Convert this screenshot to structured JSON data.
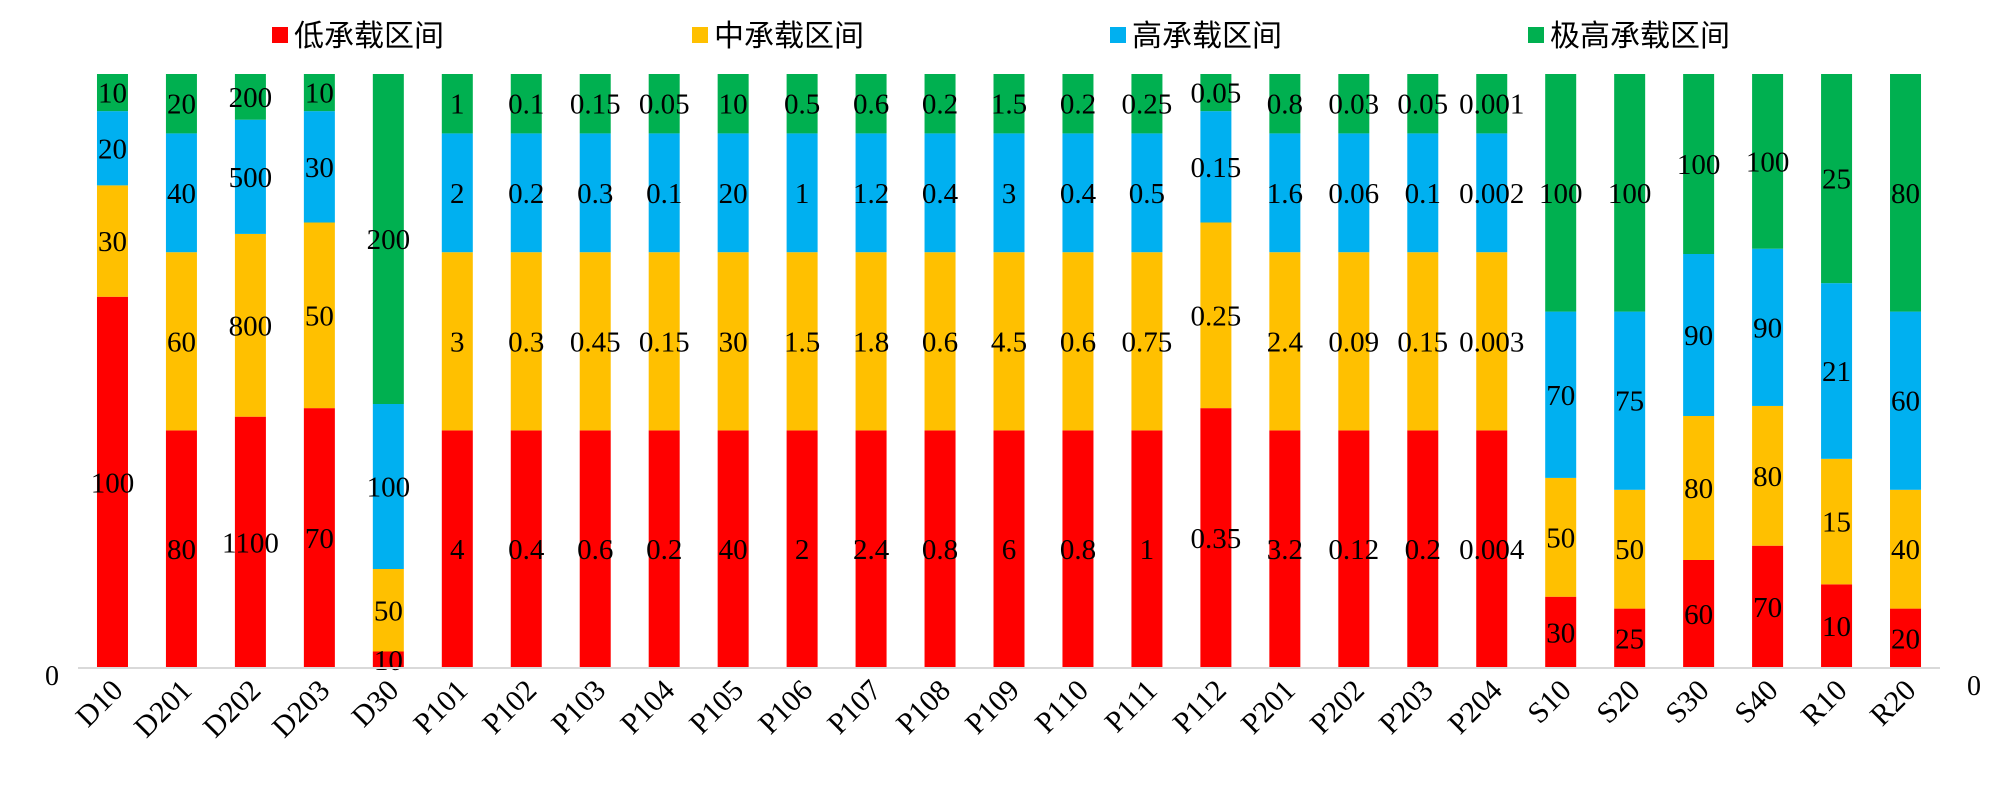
{
  "chart_data": {
    "type": "bar",
    "stacked": true,
    "normalized": true,
    "title": "",
    "xlabel": "",
    "ylabel": "",
    "left_axis_label": "0",
    "right_axis_label": "0",
    "legend_position": "top",
    "categories": [
      "D10",
      "D201",
      "D202",
      "D203",
      "D30",
      "P101",
      "P102",
      "P103",
      "P104",
      "P105",
      "P106",
      "P107",
      "P108",
      "P109",
      "P110",
      "P111",
      "P112",
      "P201",
      "P202",
      "P203",
      "P204",
      "S10",
      "S20",
      "S30",
      "S40",
      "R10",
      "R20"
    ],
    "series": [
      {
        "name": "低承载区间",
        "color": "#FF0000",
        "values": [
          100,
          80,
          1100,
          70,
          10,
          4,
          0.4,
          0.6,
          0.2,
          40,
          2,
          2.4,
          0.8,
          6,
          0.8,
          1,
          0.35,
          3.2,
          0.12,
          0.2,
          0.004,
          30,
          25,
          60,
          70,
          10,
          20
        ],
        "labels": [
          "100",
          "80",
          "1100",
          "70",
          "10",
          "4",
          "0.4",
          "0.6",
          "0.2",
          "40",
          "2",
          "2.4",
          "0.8",
          "6",
          "0.8",
          "1",
          "0.35",
          "3.2",
          "0.12",
          "0.2",
          "0.004",
          "30",
          "25",
          "60",
          "70",
          "10",
          "20"
        ]
      },
      {
        "name": "中承载区间",
        "color": "#FFC000",
        "values": [
          30,
          60,
          800,
          50,
          50,
          3,
          0.3,
          0.45,
          0.15,
          30,
          1.5,
          1.8,
          0.6,
          4.5,
          0.6,
          0.75,
          0.25,
          2.4,
          0.09,
          0.15,
          0.003,
          50,
          50,
          80,
          80,
          15,
          40
        ],
        "labels": [
          "30",
          "60",
          "800",
          "50",
          "50",
          "3",
          "0.3",
          "0.45",
          "0.15",
          "30",
          "1.5",
          "1.8",
          "0.6",
          "4.5",
          "0.6",
          "0.75",
          "0.25",
          "2.4",
          "0.09",
          "0.15",
          "0.003",
          "50",
          "50",
          "80",
          "80",
          "15",
          "40"
        ]
      },
      {
        "name": "高承载区间",
        "color": "#00B0F0",
        "values": [
          20,
          40,
          500,
          30,
          100,
          2,
          0.2,
          0.3,
          0.1,
          20,
          1,
          1.2,
          0.4,
          3,
          0.4,
          0.5,
          0.15,
          1.6,
          0.06,
          0.1,
          0.002,
          70,
          75,
          90,
          90,
          21,
          60
        ],
        "labels": [
          "20",
          "40",
          "500",
          "30",
          "100",
          "2",
          "0.2",
          "0.3",
          "0.1",
          "20",
          "1",
          "1.2",
          "0.4",
          "3",
          "0.4",
          "0.5",
          "0.15",
          "1.6",
          "0.06",
          "0.1",
          "0.002",
          "70",
          "75",
          "90",
          "90",
          "21",
          "60"
        ]
      },
      {
        "name": "极高承载区间",
        "color": "#00B050",
        "values": [
          10,
          20,
          200,
          10,
          200,
          1,
          0.1,
          0.15,
          0.05,
          10,
          0.5,
          0.6,
          0.2,
          1.5,
          0.2,
          0.25,
          0.05,
          0.8,
          0.03,
          0.05,
          0.001,
          100,
          100,
          100,
          100,
          25,
          80
        ],
        "labels": [
          "10",
          "20",
          "200",
          "10",
          "200",
          "1",
          "0.1",
          "0.15",
          "0.05",
          "10",
          "0.5",
          "0.6",
          "0.2",
          "1.5",
          "0.2",
          "0.25",
          "0.05",
          "0.8",
          "0.03",
          "0.05",
          "0.001",
          "100",
          "100",
          "100",
          "100",
          "25",
          "80"
        ]
      }
    ]
  }
}
